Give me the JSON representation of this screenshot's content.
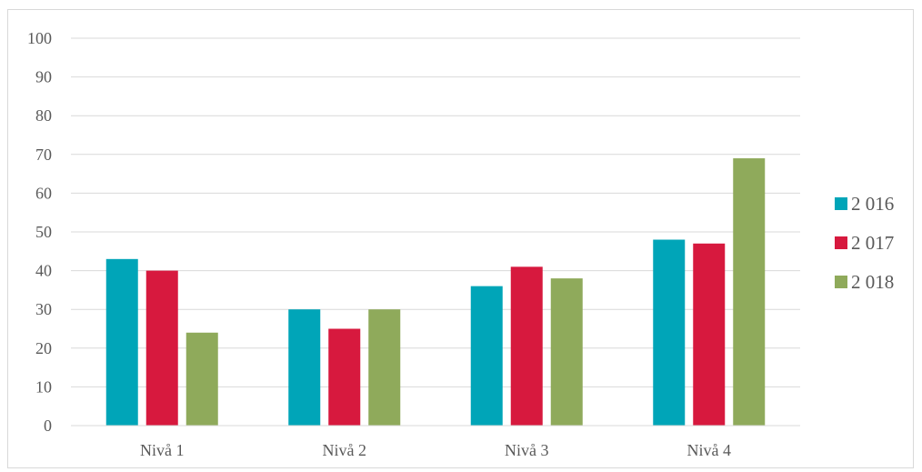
{
  "chart_data": {
    "type": "bar",
    "title": "",
    "xlabel": "",
    "ylabel": "",
    "categories": [
      "Nivå 1",
      "Nivå 2",
      "Nivå 3",
      "Nivå 4"
    ],
    "series": [
      {
        "name": "2 016",
        "color": "#00a5b8",
        "values": [
          43,
          30,
          36,
          48
        ]
      },
      {
        "name": "2 017",
        "color": "#d7193e",
        "values": [
          40,
          25,
          41,
          47
        ]
      },
      {
        "name": "2 018",
        "color": "#8faa5b",
        "values": [
          24,
          30,
          38,
          69
        ]
      }
    ],
    "ylim": [
      0,
      100
    ],
    "yticks": [
      "0",
      "10",
      "20",
      "30",
      "40",
      "50",
      "60",
      "70",
      "80",
      "90",
      "100"
    ],
    "grid": true,
    "legend_position": "right"
  }
}
